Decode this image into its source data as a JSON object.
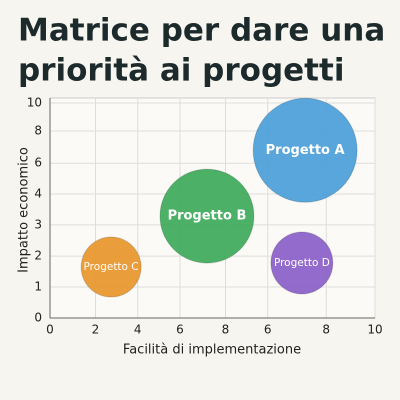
{
  "chart_data": {
    "type": "bubble",
    "title": [
      "Matrice per dare una",
      "priorità ai progetti"
    ],
    "x_label": "Facilità di implementazione",
    "y_label": "Impatto economico",
    "xlim": [
      0,
      10
    ],
    "xticks": [
      0,
      {
        "value": 1.4,
        "label": "2"
      },
      {
        "value": 2.7,
        "label": "4"
      },
      {
        "value": 4.0,
        "label": "6"
      },
      {
        "value": 5.4,
        "label": "8"
      },
      {
        "value": 6.7,
        "label": "6"
      },
      {
        "value": 8.5,
        "label": "8"
      },
      10
    ],
    "ylim": [
      0,
      10
    ],
    "yticks": [
      0,
      {
        "value": 1.44,
        "label": "1"
      },
      {
        "value": 2.88,
        "label": "2"
      },
      {
        "value": 4.33,
        "label": "3"
      },
      {
        "value": 5.77,
        "label": "4"
      },
      {
        "value": 7.2,
        "label": "6"
      },
      {
        "value": 8.7,
        "label": "8"
      },
      10
    ],
    "grid": true,
    "series": [
      {
        "name": "Progetto A",
        "color": "#4a9ed8",
        "x": [
          7.85
        ],
        "y": [
          7.8
        ],
        "sizes": [
          52
        ]
      },
      {
        "name": "Progetto B",
        "color": "#3daa5a",
        "x": [
          4.83
        ],
        "y": [
          4.74
        ],
        "sizes": [
          47
        ]
      },
      {
        "name": "Progetto C",
        "color": "#e8952a",
        "x": [
          1.88
        ],
        "y": [
          2.37
        ],
        "sizes": [
          30
        ]
      },
      {
        "name": "Progetto D",
        "color": "#8a5ec8",
        "x": [
          7.75
        ],
        "y": [
          2.56
        ],
        "sizes": [
          31
        ]
      }
    ]
  }
}
